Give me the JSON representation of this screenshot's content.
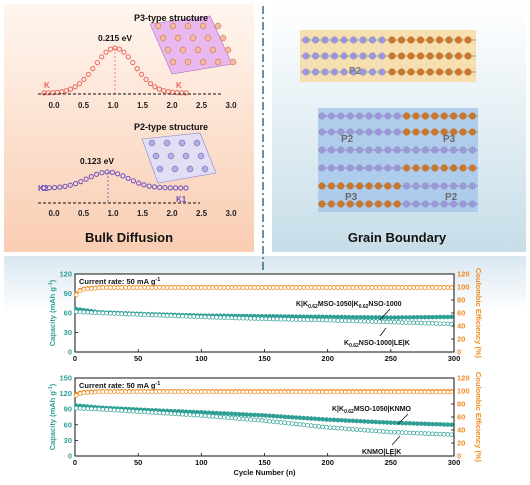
{
  "colors": {
    "teal": "#2e9f95",
    "orange": "#f08a1e",
    "salmon": "#e8685e",
    "purple": "#6b4fbf",
    "brown": "#c8782e",
    "lavender": "#9a98d6",
    "panel_left": "#fbd8c2",
    "panel_right": "#cfe3ec",
    "panel_bottom": "#dde9f2"
  },
  "top_left": {
    "p3": {
      "structure_label": "P3-type structure",
      "energy": "0.215 eV",
      "end_left": "K",
      "end_right": "K",
      "xticks": [
        "0.0",
        "0.5",
        "1.0",
        "1.5",
        "2.0",
        "2.5",
        "3.0"
      ]
    },
    "p2": {
      "structure_label": "P2-type structure",
      "energy": "0.123 eV",
      "end_left": "K2",
      "end_right": "K1",
      "xticks": [
        "0.0",
        "0.5",
        "1.0",
        "1.5",
        "2.0",
        "2.5",
        "3.0"
      ]
    },
    "title": "Bulk Diffusion"
  },
  "top_right": {
    "title": "Grain Boundary",
    "upper_label": "P2",
    "lower_labels": [
      "P2",
      "P3",
      "P3",
      "P2"
    ]
  },
  "chart_data": [
    {
      "type": "scatter",
      "annotation_rate": "Current rate: 50 mA g",
      "rate_sup": "-1",
      "ylabel_left": "Capacity (mAh g",
      "ylabel_left_sup": "-1",
      "ylabel_left_end": ")",
      "ylabel_right": "Coulombic Efficiency (%)",
      "xlim": [
        0,
        300
      ],
      "ylim_left": [
        0,
        120
      ],
      "ylim_right": [
        0,
        120
      ],
      "xticks": [
        "0",
        "50",
        "100",
        "150",
        "200",
        "250",
        "300"
      ],
      "yticks_left": [
        "0",
        "30",
        "60",
        "90",
        "120"
      ],
      "yticks_right": [
        "0",
        "20",
        "40",
        "60",
        "80",
        "100",
        "120"
      ],
      "label_a_parts": [
        "K|K",
        "0.62",
        "MSO-1050|K",
        "0.62",
        "NSO-1000"
      ],
      "label_b_parts": [
        "K",
        "0.62",
        "NSO-1000|LE|K"
      ],
      "series_a_capacity": [
        [
          1,
          66
        ],
        [
          20,
          61
        ],
        [
          60,
          58
        ],
        [
          100,
          56
        ],
        [
          150,
          55
        ],
        [
          200,
          54
        ],
        [
          250,
          53
        ],
        [
          300,
          54
        ]
      ],
      "series_b_capacity": [
        [
          1,
          62
        ],
        [
          20,
          60
        ],
        [
          60,
          57
        ],
        [
          100,
          54
        ],
        [
          150,
          51
        ],
        [
          200,
          49
        ],
        [
          250,
          46
        ],
        [
          300,
          43
        ]
      ],
      "efficiency_a": [
        [
          1,
          90
        ],
        [
          5,
          97
        ],
        [
          20,
          99.5
        ],
        [
          300,
          99.5
        ]
      ],
      "efficiency_b": [
        [
          1,
          88
        ],
        [
          5,
          96
        ],
        [
          20,
          99
        ],
        [
          300,
          99
        ]
      ]
    },
    {
      "type": "scatter",
      "annotation_rate": "Current rate: 50 mA g",
      "rate_sup": "-1",
      "ylabel_left": "Capacity (mAh g",
      "ylabel_left_sup": "-1",
      "ylabel_left_end": ")",
      "ylabel_right": "Coulombic Efficiency (%)",
      "xlabel": "Cycle Number (n)",
      "xlim": [
        0,
        300
      ],
      "ylim_left": [
        0,
        150
      ],
      "ylim_right": [
        0,
        120
      ],
      "xticks": [
        "0",
        "50",
        "100",
        "150",
        "200",
        "250",
        "300"
      ],
      "yticks_left": [
        "0",
        "30",
        "60",
        "90",
        "120",
        "150"
      ],
      "yticks_right": [
        "0",
        "20",
        "40",
        "60",
        "80",
        "100",
        "120"
      ],
      "label_a_parts": [
        "K|K",
        "0.62",
        "MSO-1050|KNMO"
      ],
      "label_b_parts": [
        "KNMO|LE|K"
      ],
      "series_a_capacity": [
        [
          1,
          97
        ],
        [
          20,
          93
        ],
        [
          60,
          88
        ],
        [
          100,
          84
        ],
        [
          150,
          78
        ],
        [
          200,
          70
        ],
        [
          250,
          64
        ],
        [
          300,
          60
        ]
      ],
      "series_b_capacity": [
        [
          1,
          92
        ],
        [
          20,
          90
        ],
        [
          60,
          84
        ],
        [
          100,
          78
        ],
        [
          150,
          68
        ],
        [
          200,
          55
        ],
        [
          250,
          46
        ],
        [
          300,
          41
        ]
      ],
      "efficiency_a": [
        [
          1,
          95
        ],
        [
          5,
          98
        ],
        [
          20,
          99.5
        ],
        [
          300,
          99.5
        ]
      ],
      "efficiency_b": [
        [
          1,
          93
        ],
        [
          5,
          97
        ],
        [
          20,
          99
        ],
        [
          300,
          98.5
        ]
      ]
    }
  ]
}
